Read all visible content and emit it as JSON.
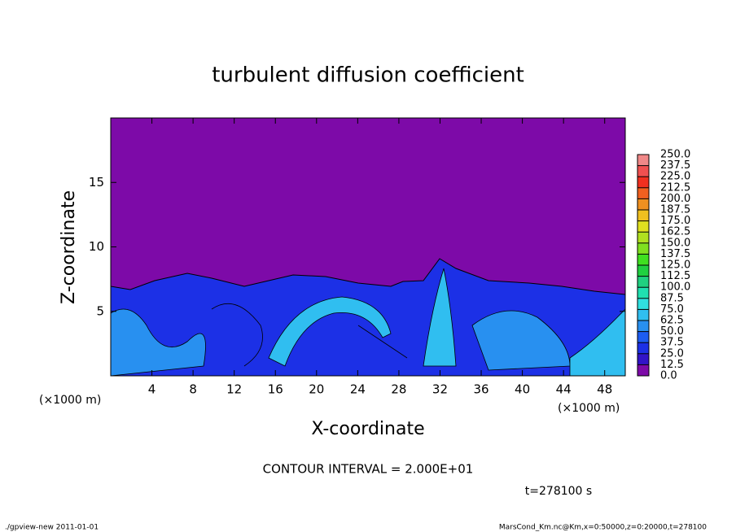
{
  "chart_data": {
    "type": "contour",
    "title": "turbulent diffusion coefficient",
    "x_label": "X-coordinate",
    "y_label": "Z-coordinate",
    "x_unit": "(×1000 m)",
    "xlim": [
      0,
      50
    ],
    "ylim": [
      0,
      20
    ],
    "xticks": [
      4,
      8,
      12,
      16,
      20,
      24,
      28,
      32,
      36,
      40,
      44,
      48
    ],
    "yticks": [
      5,
      10,
      15
    ],
    "colorbar": {
      "levels": [
        {
          "value": 0,
          "label": "0.0"
        },
        {
          "value": 12.5,
          "label": "12.5"
        },
        {
          "value": 25,
          "label": "25.0"
        },
        {
          "value": 37.5,
          "label": "37.5"
        },
        {
          "value": 50,
          "label": "50.0"
        },
        {
          "value": 62.5,
          "label": "62.5"
        },
        {
          "value": 75,
          "label": "75.0"
        },
        {
          "value": 87.5,
          "label": "87.5"
        },
        {
          "value": 100,
          "label": "100.0"
        },
        {
          "value": 112.5,
          "label": "112.5"
        },
        {
          "value": 125,
          "label": "125.0"
        },
        {
          "value": 137.5,
          "label": "137.5"
        },
        {
          "value": 150,
          "label": "150.0"
        },
        {
          "value": 162.5,
          "label": "162.5"
        },
        {
          "value": 175,
          "label": "175.0"
        },
        {
          "value": 187.5,
          "label": "187.5"
        },
        {
          "value": 200,
          "label": "200.0"
        },
        {
          "value": 212.5,
          "label": "212.5"
        },
        {
          "value": 225,
          "label": "225.0"
        },
        {
          "value": 237.5,
          "label": "237.5"
        },
        {
          "value": 250,
          "label": "250.0"
        }
      ],
      "colors": [
        "#7d0aa8",
        "#3214c8",
        "#1c30e6",
        "#1c5cf0",
        "#2890f0",
        "#30bef0",
        "#30e0e0",
        "#20e0b0",
        "#20d080",
        "#20d040",
        "#40e020",
        "#80e020",
        "#b0e020",
        "#e0e020",
        "#f0c020",
        "#f09020",
        "#f06020",
        "#f03020",
        "#f05050",
        "#f08888"
      ]
    },
    "annotations": {
      "contour_interval": "CONTOUR INTERVAL = 2.000E+01",
      "time": "t=278100 s",
      "program": "./gpview-new  2011-01-01",
      "file": "MarsCond_Km.nc@Km,x=0:50000,z=0:20000,t=278100"
    }
  }
}
